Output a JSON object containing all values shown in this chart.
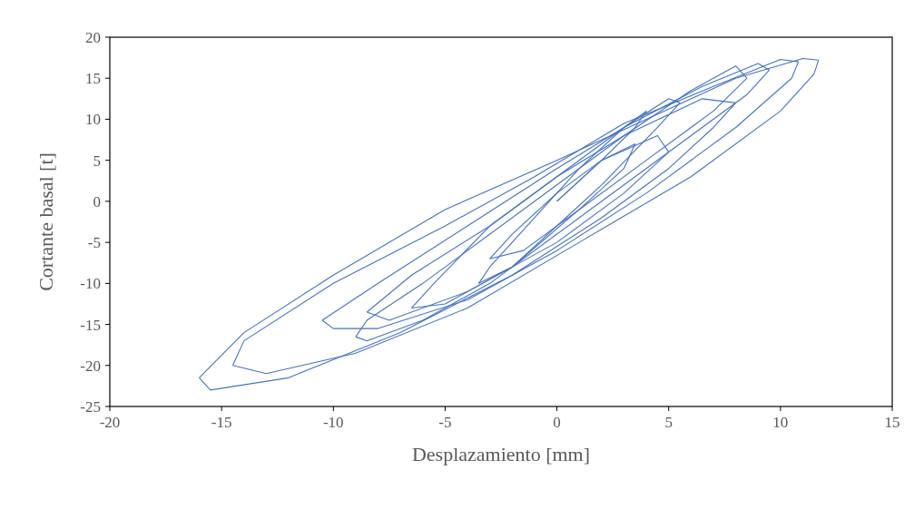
{
  "chart_data": {
    "type": "line",
    "xlabel": "Desplazamiento [mm]",
    "ylabel": "Cortante basal [t]",
    "xlim": [
      -20,
      15
    ],
    "xticks": [
      -20,
      -15,
      -10,
      -5,
      0,
      5,
      10,
      15
    ],
    "ylim": [
      -25,
      20
    ],
    "yticks": [
      -25,
      -20,
      -15,
      -10,
      -5,
      0,
      5,
      10,
      15,
      20
    ],
    "grid": false,
    "series": [
      {
        "color": "#4472c4",
        "x": [
          0,
          2,
          3.5,
          4
        ],
        "values": [
          0,
          5,
          9,
          11
        ]
      },
      {
        "color": "#4472c4",
        "x": [
          4,
          3,
          1,
          -1,
          -3,
          -3.5
        ],
        "values": [
          11,
          9,
          4,
          -2,
          -8,
          -10
        ]
      },
      {
        "color": "#4472c4",
        "x": [
          -3.5,
          -2,
          0,
          2,
          4.5,
          5.5
        ],
        "values": [
          -10,
          -8,
          -3,
          2,
          9,
          12
        ]
      },
      {
        "color": "#4472c4",
        "x": [
          5.5,
          5,
          3,
          0,
          -3,
          -5.5,
          -6.5
        ],
        "values": [
          12,
          12.5,
          9,
          3,
          -3,
          -10,
          -13
        ]
      },
      {
        "color": "#4472c4",
        "x": [
          -6.5,
          -5,
          -2,
          1,
          4,
          7,
          8.5
        ],
        "values": [
          -13,
          -12.5,
          -8,
          -1,
          5,
          11,
          15
        ]
      },
      {
        "color": "#4472c4",
        "x": [
          8.5,
          8,
          6,
          3,
          0,
          -3,
          -6,
          -8.5,
          -9
        ],
        "values": [
          15,
          16.5,
          13.5,
          8,
          2,
          -4,
          -10,
          -14.5,
          -16.5
        ]
      },
      {
        "color": "#4472c4",
        "x": [
          -9,
          -8.5,
          -6,
          -3,
          0,
          3,
          6,
          8.5,
          9.5
        ],
        "values": [
          -16.5,
          -17,
          -14.5,
          -10,
          -4,
          2,
          8,
          13,
          16
        ]
      },
      {
        "color": "#4472c4",
        "x": [
          9.5,
          9,
          6.5,
          3,
          0,
          -4,
          -8,
          -10.5
        ],
        "values": [
          16,
          16.8,
          14,
          9,
          4,
          -3,
          -10,
          -14.5
        ]
      },
      {
        "color": "#4472c4",
        "x": [
          -10.5,
          -10,
          -8,
          -4,
          0,
          4,
          8,
          10.5,
          10.8
        ],
        "values": [
          -14.5,
          -15.5,
          -15.5,
          -12,
          -6,
          1,
          9,
          15,
          17
        ]
      },
      {
        "color": "#4472c4",
        "x": [
          10.8,
          10,
          7,
          3,
          -1,
          -5,
          -10,
          -14,
          -14.5
        ],
        "values": [
          17,
          17.3,
          14,
          9.5,
          3,
          -3,
          -10,
          -17,
          -20
        ]
      },
      {
        "color": "#4472c4",
        "x": [
          -14.5,
          -13,
          -9,
          -4,
          1,
          6,
          10,
          11.5,
          11.7
        ],
        "values": [
          -20,
          -21,
          -18.5,
          -13,
          -5,
          3,
          11,
          15.5,
          17.2
        ]
      },
      {
        "color": "#4472c4",
        "x": [
          11.7,
          11,
          8,
          4,
          0,
          -5,
          -10,
          -14,
          -16
        ],
        "values": [
          17.2,
          17.4,
          15,
          10,
          5,
          -1,
          -9,
          -16,
          -21.5
        ]
      },
      {
        "color": "#4472c4",
        "x": [
          -16,
          -15.5,
          -12,
          -7,
          -2,
          2,
          5,
          7,
          8
        ],
        "values": [
          -21.5,
          -23,
          -21.5,
          -16,
          -9,
          -2,
          4,
          9,
          12
        ]
      },
      {
        "color": "#4472c4",
        "x": [
          8,
          6.5,
          3,
          0,
          -3,
          -6.5,
          -8.5
        ],
        "values": [
          12,
          12.5,
          8,
          3,
          -3,
          -9,
          -13.5
        ]
      },
      {
        "color": "#4472c4",
        "x": [
          -8.5,
          -7.5,
          -4,
          0,
          3,
          5
        ],
        "values": [
          -13.5,
          -14.5,
          -11,
          -5,
          1,
          6
        ]
      },
      {
        "color": "#4472c4",
        "x": [
          5,
          4.5,
          2,
          0,
          -2,
          -3
        ],
        "values": [
          6,
          8,
          5,
          1,
          -4,
          -7
        ]
      },
      {
        "color": "#4472c4",
        "x": [
          -3,
          -1.5,
          1,
          3,
          3.5
        ],
        "values": [
          -7,
          -6,
          -1,
          4,
          7
        ]
      },
      {
        "color": "#4472c4",
        "x": [
          3.5,
          2,
          0
        ],
        "values": [
          7,
          5,
          0
        ]
      }
    ]
  }
}
